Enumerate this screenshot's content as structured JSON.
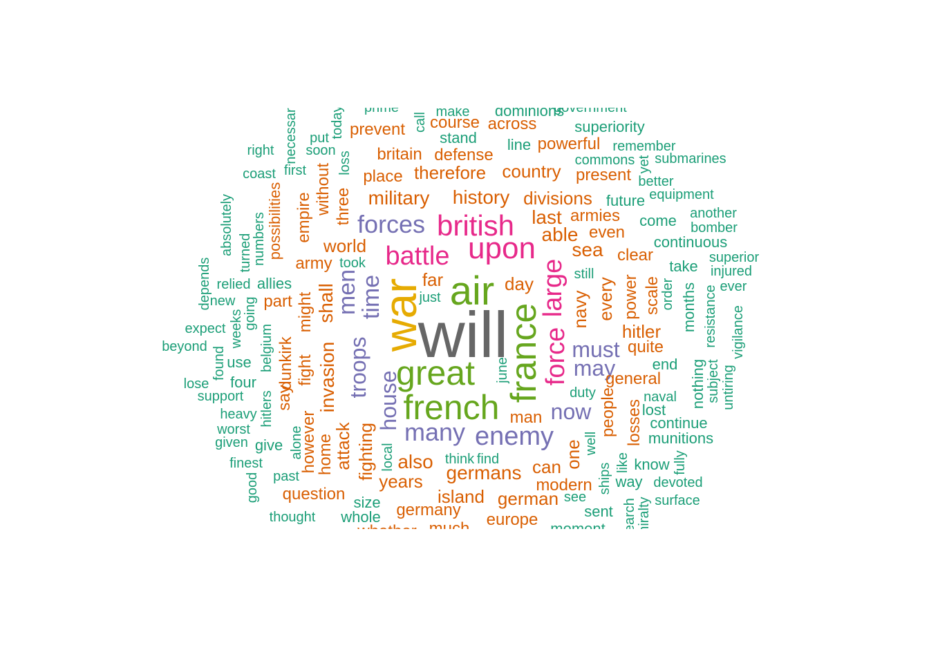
{
  "chart_data": {
    "type": "wordcloud",
    "colors": {
      "gray": "#666666",
      "gold": "#e6ab02",
      "green": "#66a61e",
      "magenta": "#e7298a",
      "purple": "#7570b3",
      "orange": "#d95f02",
      "teal": "#1b9e77"
    },
    "words": [
      {
        "text": "will",
        "color": "gray"
      },
      {
        "text": "war",
        "color": "gold"
      },
      {
        "text": "air",
        "color": "green"
      },
      {
        "text": "great",
        "color": "green"
      },
      {
        "text": "french",
        "color": "green"
      },
      {
        "text": "france",
        "color": "green"
      },
      {
        "text": "upon",
        "color": "magenta"
      },
      {
        "text": "british",
        "color": "magenta"
      },
      {
        "text": "battle",
        "color": "magenta"
      },
      {
        "text": "force",
        "color": "magenta"
      },
      {
        "text": "large",
        "color": "magenta"
      },
      {
        "text": "forces",
        "color": "purple"
      },
      {
        "text": "time",
        "color": "purple"
      },
      {
        "text": "men",
        "color": "purple"
      },
      {
        "text": "troops",
        "color": "purple"
      },
      {
        "text": "house",
        "color": "purple"
      },
      {
        "text": "many",
        "color": "purple"
      },
      {
        "text": "enemy",
        "color": "purple"
      },
      {
        "text": "must",
        "color": "purple"
      },
      {
        "text": "may",
        "color": "purple"
      },
      {
        "text": "now",
        "color": "purple"
      },
      {
        "text": "history",
        "color": "orange"
      },
      {
        "text": "military",
        "color": "orange"
      },
      {
        "text": "divisions",
        "color": "orange"
      },
      {
        "text": "country",
        "color": "orange"
      },
      {
        "text": "therefore",
        "color": "orange"
      },
      {
        "text": "place",
        "color": "orange"
      },
      {
        "text": "britain",
        "color": "orange"
      },
      {
        "text": "defense",
        "color": "orange"
      },
      {
        "text": "prevent",
        "color": "orange"
      },
      {
        "text": "course",
        "color": "orange"
      },
      {
        "text": "across",
        "color": "orange"
      },
      {
        "text": "powerful",
        "color": "orange"
      },
      {
        "text": "present",
        "color": "orange"
      },
      {
        "text": "last",
        "color": "orange"
      },
      {
        "text": "armies",
        "color": "orange"
      },
      {
        "text": "able",
        "color": "orange"
      },
      {
        "text": "even",
        "color": "orange"
      },
      {
        "text": "sea",
        "color": "orange"
      },
      {
        "text": "world",
        "color": "orange"
      },
      {
        "text": "army",
        "color": "orange"
      },
      {
        "text": "shall",
        "color": "orange"
      },
      {
        "text": "far",
        "color": "orange"
      },
      {
        "text": "day",
        "color": "orange"
      },
      {
        "text": "navy",
        "color": "orange"
      },
      {
        "text": "every",
        "color": "orange"
      },
      {
        "text": "clear",
        "color": "orange"
      },
      {
        "text": "power",
        "color": "orange"
      },
      {
        "text": "hitler",
        "color": "orange"
      },
      {
        "text": "quite",
        "color": "orange"
      },
      {
        "text": "general",
        "color": "orange"
      },
      {
        "text": "people",
        "color": "orange"
      },
      {
        "text": "losses",
        "color": "orange"
      },
      {
        "text": "scale",
        "color": "orange"
      },
      {
        "text": "invasion",
        "color": "orange"
      },
      {
        "text": "fighting",
        "color": "orange"
      },
      {
        "text": "attack",
        "color": "orange"
      },
      {
        "text": "also",
        "color": "orange"
      },
      {
        "text": "years",
        "color": "orange"
      },
      {
        "text": "germans",
        "color": "orange"
      },
      {
        "text": "can",
        "color": "orange"
      },
      {
        "text": "modern",
        "color": "orange"
      },
      {
        "text": "island",
        "color": "orange"
      },
      {
        "text": "german",
        "color": "orange"
      },
      {
        "text": "germany",
        "color": "orange"
      },
      {
        "text": "europe",
        "color": "orange"
      },
      {
        "text": "question",
        "color": "orange"
      },
      {
        "text": "much",
        "color": "orange"
      },
      {
        "text": "whether",
        "color": "orange"
      },
      {
        "text": "man",
        "color": "orange"
      },
      {
        "text": "one",
        "color": "orange"
      },
      {
        "text": "might",
        "color": "orange"
      },
      {
        "text": "fight",
        "color": "orange"
      },
      {
        "text": "dunkirk",
        "color": "orange"
      },
      {
        "text": "say",
        "color": "orange"
      },
      {
        "text": "part",
        "color": "orange"
      },
      {
        "text": "however",
        "color": "orange"
      },
      {
        "text": "home",
        "color": "orange"
      },
      {
        "text": "empire",
        "color": "orange"
      },
      {
        "text": "without",
        "color": "orange"
      },
      {
        "text": "three",
        "color": "orange"
      },
      {
        "text": "possibilities",
        "color": "orange"
      },
      {
        "text": "dominions",
        "color": "teal"
      },
      {
        "text": "government",
        "color": "teal"
      },
      {
        "text": "make",
        "color": "teal"
      },
      {
        "text": "prime",
        "color": "teal"
      },
      {
        "text": "superiority",
        "color": "teal"
      },
      {
        "text": "stand",
        "color": "teal"
      },
      {
        "text": "line",
        "color": "teal"
      },
      {
        "text": "remember",
        "color": "teal"
      },
      {
        "text": "commons",
        "color": "teal"
      },
      {
        "text": "submarines",
        "color": "teal"
      },
      {
        "text": "better",
        "color": "teal"
      },
      {
        "text": "equipment",
        "color": "teal"
      },
      {
        "text": "future",
        "color": "teal"
      },
      {
        "text": "come",
        "color": "teal"
      },
      {
        "text": "another",
        "color": "teal"
      },
      {
        "text": "bomber",
        "color": "teal"
      },
      {
        "text": "continuous",
        "color": "teal"
      },
      {
        "text": "superior",
        "color": "teal"
      },
      {
        "text": "injured",
        "color": "teal"
      },
      {
        "text": "ever",
        "color": "teal"
      },
      {
        "text": "take",
        "color": "teal"
      },
      {
        "text": "still",
        "color": "teal"
      },
      {
        "text": "just",
        "color": "teal"
      },
      {
        "text": "took",
        "color": "teal"
      },
      {
        "text": "right",
        "color": "teal"
      },
      {
        "text": "put",
        "color": "teal"
      },
      {
        "text": "soon",
        "color": "teal"
      },
      {
        "text": "coast",
        "color": "teal"
      },
      {
        "text": "first",
        "color": "teal"
      },
      {
        "text": "absolutely",
        "color": "teal"
      },
      {
        "text": "turned",
        "color": "teal"
      },
      {
        "text": "numbers",
        "color": "teal"
      },
      {
        "text": "depends",
        "color": "teal"
      },
      {
        "text": "relied",
        "color": "teal"
      },
      {
        "text": "allies",
        "color": "teal"
      },
      {
        "text": "new",
        "color": "teal"
      },
      {
        "text": "going",
        "color": "teal"
      },
      {
        "text": "expect",
        "color": "teal"
      },
      {
        "text": "weeks",
        "color": "teal"
      },
      {
        "text": "beyond",
        "color": "teal"
      },
      {
        "text": "belgium",
        "color": "teal"
      },
      {
        "text": "found",
        "color": "teal"
      },
      {
        "text": "use",
        "color": "teal"
      },
      {
        "text": "lose",
        "color": "teal"
      },
      {
        "text": "four",
        "color": "teal"
      },
      {
        "text": "support",
        "color": "teal"
      },
      {
        "text": "hitlers",
        "color": "teal"
      },
      {
        "text": "heavy",
        "color": "teal"
      },
      {
        "text": "worst",
        "color": "teal"
      },
      {
        "text": "given",
        "color": "teal"
      },
      {
        "text": "give",
        "color": "teal"
      },
      {
        "text": "finest",
        "color": "teal"
      },
      {
        "text": "alone",
        "color": "teal"
      },
      {
        "text": "past",
        "color": "teal"
      },
      {
        "text": "good",
        "color": "teal"
      },
      {
        "text": "thought",
        "color": "teal"
      },
      {
        "text": "local",
        "color": "teal"
      },
      {
        "text": "think",
        "color": "teal"
      },
      {
        "text": "find",
        "color": "teal"
      },
      {
        "text": "size",
        "color": "teal"
      },
      {
        "text": "whole",
        "color": "teal"
      },
      {
        "text": "june",
        "color": "teal"
      },
      {
        "text": "duty",
        "color": "teal"
      },
      {
        "text": "well",
        "color": "teal"
      },
      {
        "text": "see",
        "color": "teal"
      },
      {
        "text": "sent",
        "color": "teal"
      },
      {
        "text": "moment",
        "color": "teal"
      },
      {
        "text": "ships",
        "color": "teal"
      },
      {
        "text": "like",
        "color": "teal"
      },
      {
        "text": "way",
        "color": "teal"
      },
      {
        "text": "know",
        "color": "teal"
      },
      {
        "text": "devoted",
        "color": "teal"
      },
      {
        "text": "surface",
        "color": "teal"
      },
      {
        "text": "fully",
        "color": "teal"
      },
      {
        "text": "research",
        "color": "teal"
      },
      {
        "text": "admiralty",
        "color": "teal"
      },
      {
        "text": "naval",
        "color": "teal"
      },
      {
        "text": "lost",
        "color": "teal"
      },
      {
        "text": "continue",
        "color": "teal"
      },
      {
        "text": "munitions",
        "color": "teal"
      },
      {
        "text": "end",
        "color": "teal"
      },
      {
        "text": "nothing",
        "color": "teal"
      },
      {
        "text": "subject",
        "color": "teal"
      },
      {
        "text": "untiring",
        "color": "teal"
      },
      {
        "text": "vigilance",
        "color": "teal"
      },
      {
        "text": "resistance",
        "color": "teal"
      },
      {
        "text": "months",
        "color": "teal"
      },
      {
        "text": "order",
        "color": "teal"
      },
      {
        "text": "yet",
        "color": "teal"
      },
      {
        "text": "today",
        "color": "teal"
      },
      {
        "text": "necessary",
        "color": "teal"
      },
      {
        "text": "call",
        "color": "teal"
      },
      {
        "text": "loss",
        "color": "teal"
      }
    ]
  }
}
